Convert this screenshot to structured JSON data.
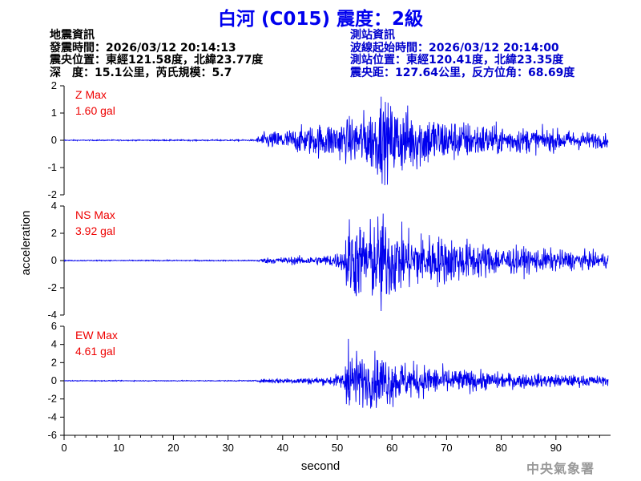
{
  "title": "白河 (C015) 震度：2級",
  "event_info": {
    "heading": "地震資訊",
    "origin_time": "發震時間：2026/03/12 20:14:13",
    "epicenter": "震央位置：東經121.58度，北緯23.77度",
    "depth_magnitude": "深　度：15.1公里，芮氏規模：5.7"
  },
  "station_info": {
    "heading": "測站資訊",
    "start_time": "波線起始時間：2026/03/12 20:14:00",
    "location": "測站位置：東經120.41度，北緯23.35度",
    "distance": "震央距：127.64公里，反方位角：68.69度"
  },
  "watermark": "中央氣象署",
  "colors": {
    "trace": "#0000ee",
    "max_label": "#ee0000",
    "axis": "#000000"
  },
  "chart_data": {
    "type": "line",
    "xlabel": "second",
    "ylabel": "acceleration",
    "xlim": [
      0,
      100
    ],
    "xticks": [
      0,
      10,
      20,
      30,
      40,
      50,
      60,
      70,
      80,
      90
    ],
    "grid": false,
    "panels": [
      {
        "name": "Z",
        "max_label": "Z Max",
        "max_value": "1.60 gal",
        "ylim": [
          -2,
          2
        ],
        "yticks": [
          -2,
          -1,
          0,
          1,
          2
        ],
        "waveform": [
          {
            "t": 0,
            "amp": 0.02
          },
          {
            "t": 35,
            "amp": 0.03
          },
          {
            "t": 36,
            "amp": 0.3
          },
          {
            "t": 42,
            "amp": 0.5
          },
          {
            "t": 52,
            "amp": 0.9
          },
          {
            "t": 56,
            "amp": 1.3
          },
          {
            "t": 58,
            "amp": 1.6
          },
          {
            "t": 64,
            "amp": 1.3
          },
          {
            "t": 70,
            "amp": 0.9
          },
          {
            "t": 80,
            "amp": 0.6
          },
          {
            "t": 90,
            "amp": 0.45
          },
          {
            "t": 100,
            "amp": 0.3
          }
        ]
      },
      {
        "name": "NS",
        "max_label": "NS Max",
        "max_value": "3.92 gal",
        "ylim": [
          -4,
          4
        ],
        "yticks": [
          -4,
          -2,
          0,
          2,
          4
        ],
        "waveform": [
          {
            "t": 0,
            "amp": 0.04
          },
          {
            "t": 35,
            "amp": 0.05
          },
          {
            "t": 37,
            "amp": 0.25
          },
          {
            "t": 47,
            "amp": 0.4
          },
          {
            "t": 51,
            "amp": 0.8
          },
          {
            "t": 52,
            "amp": 3.6
          },
          {
            "t": 55,
            "amp": 3.0
          },
          {
            "t": 58,
            "amp": 3.9
          },
          {
            "t": 62,
            "amp": 2.5
          },
          {
            "t": 70,
            "amp": 2.0
          },
          {
            "t": 80,
            "amp": 1.2
          },
          {
            "t": 90,
            "amp": 0.9
          },
          {
            "t": 100,
            "amp": 0.6
          }
        ]
      },
      {
        "name": "EW",
        "max_label": "EW Max",
        "max_value": "4.61 gal",
        "ylim": [
          -6,
          6
        ],
        "yticks": [
          -6,
          -4,
          -2,
          0,
          2,
          4,
          6
        ],
        "waveform": [
          {
            "t": 0,
            "amp": 0.05
          },
          {
            "t": 35,
            "amp": 0.06
          },
          {
            "t": 37,
            "amp": 0.3
          },
          {
            "t": 48,
            "amp": 0.5
          },
          {
            "t": 51,
            "amp": 1.0
          },
          {
            "t": 52,
            "amp": 4.6
          },
          {
            "t": 55,
            "amp": 2.8
          },
          {
            "t": 58,
            "amp": 3.5
          },
          {
            "t": 62,
            "amp": 2.4
          },
          {
            "t": 70,
            "amp": 1.6
          },
          {
            "t": 80,
            "amp": 1.0
          },
          {
            "t": 90,
            "amp": 0.8
          },
          {
            "t": 100,
            "amp": 0.6
          }
        ]
      }
    ]
  }
}
